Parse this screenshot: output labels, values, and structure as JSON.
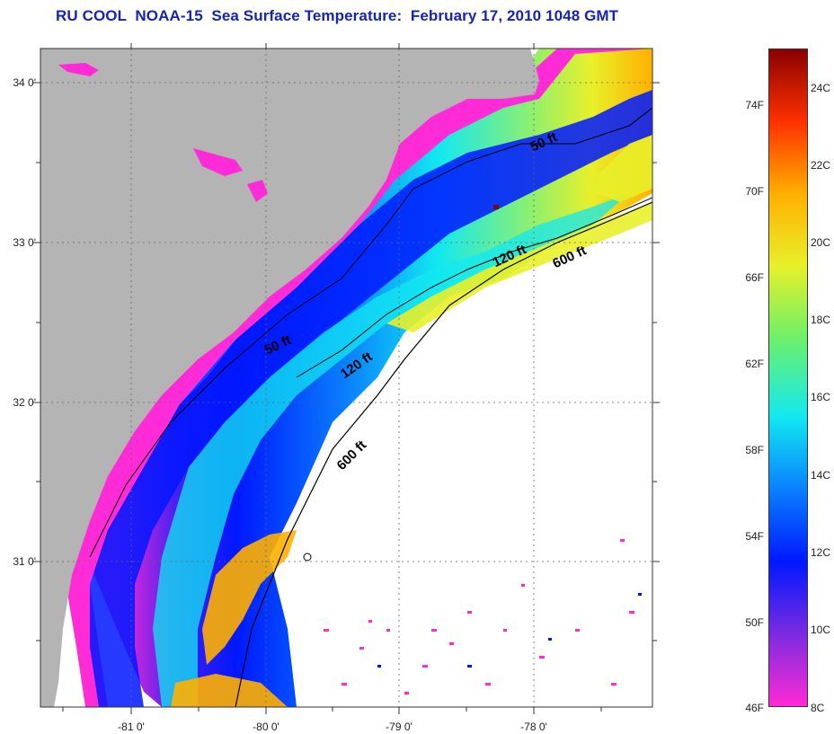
{
  "title": "RU COOL  NOAA-15  Sea Surface Temperature:  February 17, 2010 1048 GMT",
  "map": {
    "lat_range": [
      30.1,
      34.2
    ],
    "lon_range": [
      -81.65,
      -77.1
    ],
    "lat_ticks": [
      "34 0'",
      "33 0'",
      "32 0'",
      "31 0'"
    ],
    "lon_ticks": [
      "-81 0'",
      "-80 0'",
      "-79 0'",
      "-78 0'"
    ],
    "land_color": "#b4b4b4",
    "no_data_color": "#ffffff",
    "grid": "dotted"
  },
  "isobaths": {
    "shallow": "50 ft",
    "mid": "120 ft",
    "deep": "600 ft"
  },
  "colorbar": {
    "fahrenheit_labels": [
      "74F",
      "70F",
      "66F",
      "62F",
      "58F",
      "54F",
      "50F",
      "46F"
    ],
    "celsius_labels": [
      "24C",
      "22C",
      "20C",
      "18C",
      "16C",
      "14C",
      "12C",
      "10C",
      "8C"
    ],
    "range_c": [
      8,
      25
    ],
    "colors": [
      "#ff2bd6",
      "#7a2be0",
      "#0018ff",
      "#0a80ff",
      "#12e8f0",
      "#6cf06a",
      "#e8f02a",
      "#ffb000",
      "#ff3000",
      "#8a0000"
    ]
  }
}
